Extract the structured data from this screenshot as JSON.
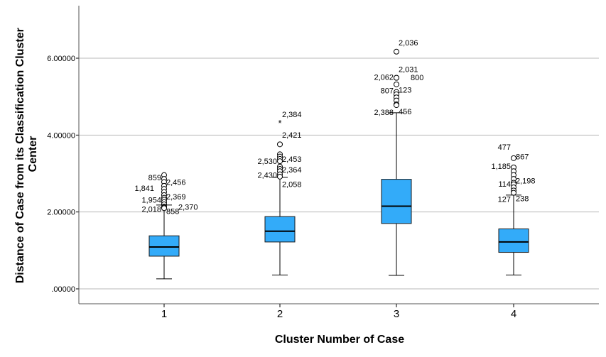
{
  "chart_data": {
    "type": "boxplot",
    "xlabel": "Cluster Number of Case",
    "ylabel_lines": [
      "Distance of Case from its Classification Cluster",
      "Center"
    ],
    "ylim": [
      -0.5,
      7.3
    ],
    "yticks": [
      0,
      2,
      4,
      6
    ],
    "ytick_labels": [
      ".00000",
      "2.00000",
      "4.00000",
      "6.00000"
    ],
    "grid": "horizontal",
    "box_color": "#33abf9",
    "categories": [
      "1",
      "2",
      "3",
      "4"
    ],
    "boxes": [
      {
        "category": "1",
        "whisker_low": 0.26,
        "q1": 0.85,
        "median": 1.09,
        "q3": 1.38,
        "whisker_high": 2.18
      },
      {
        "category": "2",
        "whisker_low": 0.36,
        "q1": 1.22,
        "median": 1.5,
        "q3": 1.88,
        "whisker_high": 2.9
      },
      {
        "category": "3",
        "whisker_low": 0.35,
        "q1": 1.7,
        "median": 2.15,
        "q3": 2.85,
        "whisker_high": 4.58
      },
      {
        "category": "4",
        "whisker_low": 0.36,
        "q1": 0.95,
        "median": 1.22,
        "q3": 1.56,
        "whisker_high": 2.44
      }
    ],
    "outliers": [
      {
        "category": "1",
        "y": 2.96,
        "label": "859",
        "label_side": "left",
        "label_dy": -0.06
      },
      {
        "category": "1",
        "y": 2.86,
        "label": "2,456",
        "label_side": "right",
        "label_dy": -0.08
      },
      {
        "category": "1",
        "y": 2.78,
        "label": "",
        "label_side": "right",
        "label_dy": 0
      },
      {
        "category": "1",
        "y": 2.68,
        "label": "",
        "label_side": "right",
        "label_dy": 0
      },
      {
        "category": "1",
        "y": 2.6,
        "label": "1,841",
        "label_side": "leftfar",
        "label_dy": 0.02
      },
      {
        "category": "1",
        "y": 2.52,
        "label": "",
        "label_side": "right",
        "label_dy": 0
      },
      {
        "category": "1",
        "y": 2.44,
        "label": "2,369",
        "label_side": "right",
        "label_dy": -0.04
      },
      {
        "category": "1",
        "y": 2.37,
        "label": "",
        "label_side": "right",
        "label_dy": 0
      },
      {
        "category": "1",
        "y": 2.32,
        "label": "1,954",
        "label_side": "left",
        "label_dy": 0.0
      },
      {
        "category": "1",
        "y": 2.26,
        "label": "",
        "label_side": "right",
        "label_dy": 0
      },
      {
        "category": "1",
        "y": 2.2,
        "label": "",
        "label_side": "right",
        "label_dy": 0
      },
      {
        "category": "1",
        "y": 2.14,
        "label": "2,018",
        "label_side": "left",
        "label_dy": -0.06
      },
      {
        "category": "1",
        "y": 2.12,
        "label": "2,370",
        "label_side": "rightfar",
        "label_dy": 0.01
      },
      {
        "category": "1",
        "y": 2.1,
        "label": "858",
        "label_side": "right",
        "label_dy": -0.08
      },
      {
        "category": "2",
        "y": 4.32,
        "label": "2,384",
        "label_side": "right",
        "label_dy": 0.22,
        "extreme": true
      },
      {
        "category": "2",
        "y": 3.76,
        "label": "2,421",
        "label_side": "right",
        "label_dy": 0.25
      },
      {
        "category": "2",
        "y": 3.5,
        "label": "",
        "label_side": "right",
        "label_dy": 0
      },
      {
        "category": "2",
        "y": 3.44,
        "label": "",
        "label_side": "right",
        "label_dy": 0
      },
      {
        "category": "2",
        "y": 3.38,
        "label": "2,453",
        "label_side": "right",
        "label_dy": 0.0
      },
      {
        "category": "2",
        "y": 3.32,
        "label": "2,530",
        "label_side": "left",
        "label_dy": 0.0
      },
      {
        "category": "2",
        "y": 3.18,
        "label": "",
        "label_side": "right",
        "label_dy": 0
      },
      {
        "category": "2",
        "y": 3.12,
        "label": "2,364",
        "label_side": "right",
        "label_dy": -0.02
      },
      {
        "category": "2",
        "y": 3.06,
        "label": "",
        "label_side": "right",
        "label_dy": 0
      },
      {
        "category": "2",
        "y": 2.98,
        "label": "2,430",
        "label_side": "left",
        "label_dy": -0.02
      },
      {
        "category": "2",
        "y": 2.92,
        "label": "2,058",
        "label_side": "right",
        "label_dy": -0.2
      },
      {
        "category": "3",
        "y": 6.17,
        "label": "2,036",
        "label_side": "right",
        "label_dy": 0.24
      },
      {
        "category": "3",
        "y": 5.49,
        "label": "2,031",
        "label_side": "right",
        "label_dy": 0.22
      },
      {
        "category": "3",
        "y": 5.49,
        "label": "2,062",
        "label_side": "left",
        "label_dy": 0.02
      },
      {
        "category": "3",
        "y": 5.32,
        "label": "800",
        "label_side": "rightfar",
        "label_dy": 0.18
      },
      {
        "category": "3",
        "y": 5.12,
        "label": "123",
        "label_side": "right",
        "label_dy": 0.06
      },
      {
        "category": "3",
        "y": 5.06,
        "label": "807",
        "label_side": "left",
        "label_dy": 0.1
      },
      {
        "category": "3",
        "y": 4.98,
        "label": "",
        "label_side": "right",
        "label_dy": 0
      },
      {
        "category": "3",
        "y": 4.9,
        "label": "",
        "label_side": "right",
        "label_dy": 0
      },
      {
        "category": "3",
        "y": 4.8,
        "label": "456",
        "label_side": "right",
        "label_dy": -0.18
      },
      {
        "category": "3",
        "y": 4.78,
        "label": "2,388",
        "label_side": "left",
        "label_dy": -0.18
      },
      {
        "category": "4",
        "y": 3.4,
        "label": "477",
        "label_side": "left",
        "label_dy": 0.29,
        "extreme": true
      },
      {
        "category": "4",
        "y": 3.4,
        "label": "867",
        "label_side": "right",
        "label_dy": 0.04
      },
      {
        "category": "4",
        "y": 3.16,
        "label": "1,185",
        "label_side": "left",
        "label_dy": 0.03
      },
      {
        "category": "4",
        "y": 3.06,
        "label": "",
        "label_side": "right",
        "label_dy": 0
      },
      {
        "category": "4",
        "y": 2.96,
        "label": "",
        "label_side": "right",
        "label_dy": 0
      },
      {
        "category": "4",
        "y": 2.86,
        "label": "",
        "label_side": "right",
        "label_dy": 0
      },
      {
        "category": "4",
        "y": 2.76,
        "label": "2,198",
        "label_side": "right",
        "label_dy": 0.06
      },
      {
        "category": "4",
        "y": 2.72,
        "label": "114",
        "label_side": "left",
        "label_dy": 0.01
      },
      {
        "category": "4",
        "y": 2.64,
        "label": "",
        "label_side": "right",
        "label_dy": 0
      },
      {
        "category": "4",
        "y": 2.56,
        "label": "238",
        "label_side": "right",
        "label_dy": -0.21
      },
      {
        "category": "4",
        "y": 2.5,
        "label": "127",
        "label_side": "left",
        "label_dy": -0.16
      }
    ]
  }
}
